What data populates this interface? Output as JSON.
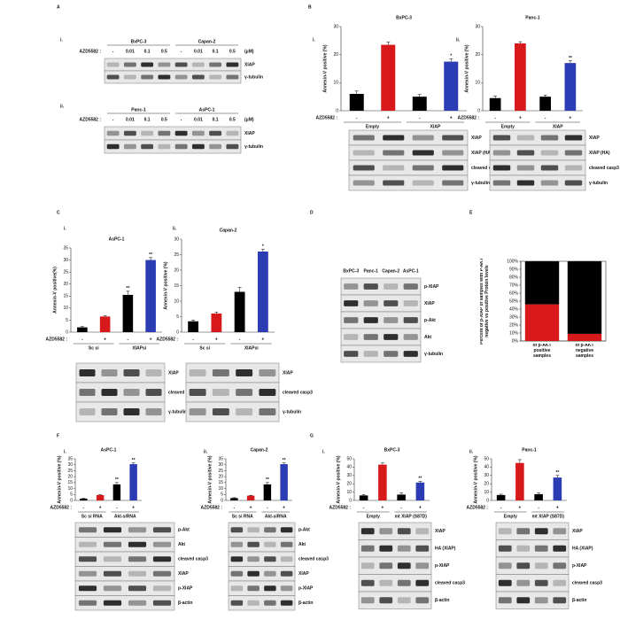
{
  "panel_labels": [
    "A",
    "B",
    "C",
    "D",
    "E",
    "F",
    "G"
  ],
  "chart_data": [
    {
      "type": "bar",
      "sub_label": "i.",
      "title": "BxPC-3",
      "y_label": "Annexin-V positive (%)",
      "treatment_label": "AZD5582 :",
      "categories": [
        "-",
        "+",
        "-",
        "+"
      ],
      "groups": [
        "Empty",
        "XIAP"
      ],
      "values": [
        6,
        23.5,
        5,
        17.5
      ],
      "errors": [
        1,
        1,
        0.8,
        1
      ],
      "colors": [
        "#000000",
        "#d7191c",
        "#000000",
        "#2c3cb4"
      ],
      "significance": [
        null,
        null,
        null,
        "*"
      ],
      "ylim": [
        0,
        30
      ],
      "yticks": [
        0,
        10,
        20,
        30
      ]
    },
    {
      "type": "bar",
      "sub_label": "ii.",
      "title": "Panc-1",
      "y_label": "Annexin-V positive (%)",
      "treatment_label": "AZD5582 :",
      "categories": [
        "-",
        "+",
        "-",
        "+"
      ],
      "groups": [
        "Empty",
        "XIAP"
      ],
      "values": [
        4.5,
        24,
        5,
        17
      ],
      "errors": [
        0.8,
        0.6,
        0.6,
        0.8
      ],
      "colors": [
        "#000000",
        "#d7191c",
        "#000000",
        "#2c3cb4"
      ],
      "significance": [
        null,
        null,
        null,
        "**"
      ],
      "ylim": [
        0,
        30
      ],
      "yticks": [
        0,
        10,
        20,
        30
      ]
    },
    {
      "type": "bar",
      "sub_label": "i.",
      "title": "AsPC-1",
      "y_label": "Annexin-V positive(%)",
      "treatment_label": "AZD5582 :",
      "categories": [
        "-",
        "+",
        "-",
        "+"
      ],
      "groups": [
        "Sc si",
        "XIAPsi"
      ],
      "values": [
        2,
        6.5,
        15.5,
        30
      ],
      "errors": [
        0.3,
        0.3,
        1.5,
        1
      ],
      "colors": [
        "#000000",
        "#d7191c",
        "#000000",
        "#2c3cb4"
      ],
      "significance": [
        null,
        null,
        "**",
        "**"
      ],
      "ylim": [
        0,
        35
      ],
      "yticks": [
        0,
        5,
        10,
        15,
        20,
        25,
        30,
        35
      ]
    },
    {
      "type": "bar",
      "sub_label": "ii.",
      "title": "Capan-2",
      "y_label": "Annexin-V positive (%)",
      "treatment_label": "AZD5582 :",
      "categories": [
        "-",
        "+",
        "-",
        "+"
      ],
      "groups": [
        "Sc si",
        "XIAPsi"
      ],
      "values": [
        3.5,
        6,
        13,
        26
      ],
      "errors": [
        0.4,
        0.5,
        1.5,
        0.8
      ],
      "colors": [
        "#000000",
        "#d7191c",
        "#000000",
        "#2c3cb4"
      ],
      "significance": [
        null,
        null,
        null,
        "*"
      ],
      "ylim": [
        0,
        30
      ],
      "yticks": [
        0,
        5,
        10,
        15,
        20,
        25,
        30
      ]
    },
    {
      "type": "stacked_bar",
      "y_label": "Percent of p-XIAP of samples with P-AKT negative vs positive Protein levels",
      "categories": [
        "of p-AKT positive samples",
        "of p-AKT negative samples"
      ],
      "series": [
        {
          "color": "#d7191c",
          "values": [
            46,
            9
          ]
        },
        {
          "color": "#000000",
          "values": [
            54,
            91
          ]
        }
      ],
      "ylim": [
        0,
        100
      ],
      "yticks": [
        {
          "value": 0,
          "label": "0%"
        },
        {
          "value": 10,
          "label": "10%"
        },
        {
          "value": 20,
          "label": "20%"
        },
        {
          "value": 30,
          "label": "30%"
        },
        {
          "value": 40,
          "label": "40%"
        },
        {
          "value": 50,
          "label": "50%"
        },
        {
          "value": 60,
          "label": "60%"
        },
        {
          "value": 70,
          "label": "70%"
        },
        {
          "value": 80,
          "label": "80%"
        },
        {
          "value": 90,
          "label": "90%"
        },
        {
          "value": 100,
          "label": "100%"
        }
      ]
    },
    {
      "type": "bar",
      "sub_label": "i.",
      "title": "AsPC-1",
      "y_label": "Annexin-V positive (%)",
      "treatment_label": "AZD5582 :",
      "categories": [
        "-",
        "+",
        "-",
        "+"
      ],
      "groups": [
        "Sc si RNA",
        "Akt-siRNA"
      ],
      "values": [
        1.5,
        4.5,
        13.5,
        30.5
      ],
      "errors": [
        0.3,
        0.4,
        1.5,
        1
      ],
      "colors": [
        "#000000",
        "#d7191c",
        "#000000",
        "#2c3cb4"
      ],
      "significance": [
        null,
        null,
        "**",
        "**"
      ],
      "ylim": [
        0,
        35
      ],
      "yticks": [
        0,
        5,
        10,
        15,
        20,
        25,
        30,
        35
      ]
    },
    {
      "type": "bar",
      "sub_label": "ii.",
      "title": "Capan-2",
      "y_label": "Annexin-V positive (%)",
      "treatment_label": "AZD5582 :",
      "categories": [
        "-",
        "+",
        "-",
        "+"
      ],
      "groups": [
        "Sc si RNA",
        "Akt-siRNA"
      ],
      "values": [
        2,
        4,
        13.5,
        30.5
      ],
      "errors": [
        0.3,
        0.3,
        1.5,
        1
      ],
      "colors": [
        "#000000",
        "#d7191c",
        "#000000",
        "#2c3cb4"
      ],
      "significance": [
        null,
        null,
        "**",
        "**"
      ],
      "ylim": [
        0,
        35
      ],
      "yticks": [
        0,
        5,
        10,
        15,
        20,
        25,
        30,
        35
      ]
    },
    {
      "type": "bar",
      "sub_label": "i.",
      "title": "BxPC-3",
      "y_label": "Annexin-V positive (%)",
      "treatment_label": "AZD5582 :",
      "categories": [
        "-",
        "+",
        "-",
        "+"
      ],
      "groups": [
        "Empty",
        "mt XIAP (S87D)"
      ],
      "values": [
        6,
        43,
        7,
        21.5
      ],
      "errors": [
        1,
        2,
        2,
        1.5
      ],
      "colors": [
        "#000000",
        "#d7191c",
        "#000000",
        "#2c3cb4"
      ],
      "significance": [
        null,
        null,
        null,
        "**"
      ],
      "ylim": [
        0,
        50
      ],
      "yticks": [
        0,
        10,
        20,
        30,
        40,
        50
      ]
    },
    {
      "type": "bar",
      "sub_label": "ii.",
      "title": "Panc-1",
      "y_label": "Annexin-V positive (%)",
      "treatment_label": "AZD5582 :",
      "categories": [
        "-",
        "+",
        "-",
        "+"
      ],
      "groups": [
        "Empty",
        "mt XIAP (S87D)"
      ],
      "values": [
        6.5,
        45,
        7.5,
        27.5
      ],
      "errors": [
        1,
        4,
        1.5,
        2.5
      ],
      "colors": [
        "#000000",
        "#d7191c",
        "#000000",
        "#2c3cb4"
      ],
      "significance": [
        null,
        null,
        null,
        "**"
      ],
      "ylim": [
        0,
        50
      ],
      "yticks": [
        0,
        10,
        20,
        30,
        40,
        50
      ]
    }
  ],
  "blots": [
    {
      "sub_label": "i.",
      "headers": [
        "BxPC-3",
        "Capan-2"
      ],
      "treatment_label": "AZD5582 :",
      "lanes": [
        "-",
        "0.01",
        "0.1",
        "0.5",
        "-",
        "0.01",
        "0.1",
        "0.5"
      ],
      "unit": "(μM)",
      "rows": [
        "XIAP",
        "γ-tubulin"
      ]
    },
    {
      "sub_label": "ii.",
      "headers": [
        "Panc-1",
        "AsPC-1"
      ],
      "treatment_label": "AZD5582 :",
      "lanes": [
        "-",
        "0.01",
        "0.1",
        "0.5",
        "-",
        "0.01",
        "0.1",
        "0.5"
      ],
      "unit": "(μM)",
      "rows": [
        "XIAP",
        "γ-tubulin"
      ]
    },
    {
      "rows": [
        "XIAP",
        "XIAP (HA)",
        "cleaved casp3",
        "γ-tubulin"
      ]
    },
    {
      "rows": [
        "XIAP",
        "XIAP (HA)",
        "cleaved casp3",
        "γ-tubulin"
      ]
    },
    {
      "rows": [
        "XIAP",
        "cleaved casp3",
        "γ-tubulin"
      ]
    },
    {
      "rows": [
        "XIAP",
        "cleaved casp3",
        "γ-tubulin"
      ]
    },
    {
      "headers": [
        "BxPC-3",
        "Panc-1",
        "Capan-2",
        "AsPC-1"
      ],
      "rows": [
        "p-XIAP",
        "XIAP",
        "p-Akt",
        "Akt",
        "γ-tubulin"
      ]
    },
    {
      "rows": [
        "p-Akt",
        "Akt",
        "cleaved casp3",
        "XIAP",
        "p-XIAP",
        "β-actin"
      ]
    },
    {
      "rows": [
        "p-Akt",
        "Akt",
        "cleaved casp3",
        "XIAP",
        "p-XIAP",
        "β-actin"
      ]
    },
    {
      "rows": [
        "XIAP",
        "HA (XIAP)",
        "p-XIAP",
        "cleaved casp3",
        "β-actin"
      ]
    },
    {
      "rows": [
        "XIAP",
        "HA (XIAP)",
        "p-XIAP",
        "cleaved casp3",
        "β-actin"
      ]
    }
  ]
}
